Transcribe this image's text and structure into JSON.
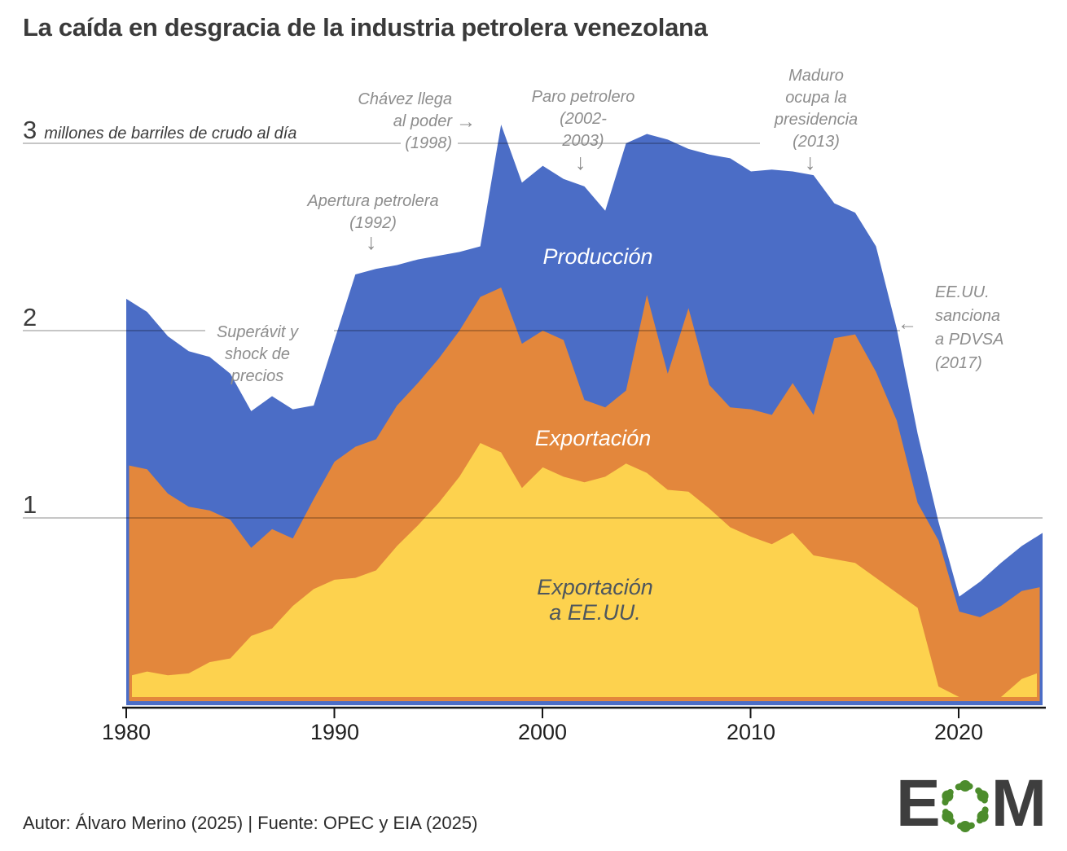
{
  "title": "La caída en desgracia de la industria petrolera venezolana",
  "footer": "Autor: Álvaro Merino (2025) | Fuente: OPEC y EIA (2025)",
  "y_axis": {
    "ticks": [
      "3",
      "2",
      "1"
    ],
    "unit": "millones de barriles de crudo al día"
  },
  "x_axis": {
    "ticks": [
      "1980",
      "1990",
      "2000",
      "2010",
      "2020"
    ]
  },
  "labels": {
    "produccion": "Producción",
    "exportacion": "Exportación",
    "eeuu_line1": "Exportación",
    "eeuu_line2": "a EE.UU."
  },
  "annotations": [
    {
      "id": "chavez",
      "lines": [
        "Chávez llega",
        "al poder",
        "(1998)"
      ],
      "arrow": "→"
    },
    {
      "id": "paro",
      "lines": [
        "Paro petrolero",
        "(2002-",
        "2003)"
      ],
      "arrow": "↓"
    },
    {
      "id": "maduro",
      "lines": [
        "Maduro",
        "ocupa la",
        "presidencia",
        "(2013)"
      ],
      "arrow": "↓"
    },
    {
      "id": "apertura",
      "lines": [
        "Apertura petrolera",
        "(1992)"
      ],
      "arrow": "↓"
    },
    {
      "id": "superavit",
      "lines": [
        "Superávit y",
        "shock de",
        "precios"
      ],
      "arrow": ""
    },
    {
      "id": "sanciones",
      "lines": [
        "EE.UU.",
        "sanciona",
        "a PDVSA",
        "(2017)"
      ],
      "arrow": "←"
    }
  ],
  "logo": {
    "left_letter": "E",
    "right_letter": "M",
    "ring_color": "#4c8c2c"
  },
  "chart_data": {
    "type": "area",
    "title": "La caída en desgracia de la industria petrolera venezolana",
    "ylabel": "millones de barriles de crudo al día",
    "xlabel": "",
    "ylim": [
      0,
      3.2
    ],
    "xlim": [
      1980,
      2024
    ],
    "grid": "horizontal",
    "legend_position": "labels-inside-areas",
    "colors": {
      "produccion": "#4b6dc6",
      "exportacion": "#e3873c",
      "exportacion_eeuu": "#fdd24e"
    },
    "years": [
      1980,
      1981,
      1982,
      1983,
      1984,
      1985,
      1986,
      1987,
      1988,
      1989,
      1990,
      1991,
      1992,
      1993,
      1994,
      1995,
      1996,
      1997,
      1998,
      1999,
      2000,
      2001,
      2002,
      2003,
      2004,
      2005,
      2006,
      2007,
      2008,
      2009,
      2010,
      2011,
      2012,
      2013,
      2014,
      2015,
      2016,
      2017,
      2018,
      2019,
      2020,
      2021,
      2022,
      2023,
      2024
    ],
    "series": [
      {
        "name": "Producción",
        "values": [
          2.17,
          2.1,
          1.97,
          1.89,
          1.86,
          1.77,
          1.57,
          1.65,
          1.58,
          1.6,
          1.95,
          2.3,
          2.33,
          2.35,
          2.38,
          2.4,
          2.42,
          2.45,
          3.1,
          2.79,
          2.88,
          2.81,
          2.77,
          2.64,
          3.0,
          3.05,
          3.02,
          2.97,
          2.94,
          2.92,
          2.85,
          2.86,
          2.85,
          2.83,
          2.68,
          2.63,
          2.45,
          2.01,
          1.45,
          0.98,
          0.58,
          0.66,
          0.76,
          0.85,
          0.92
        ]
      },
      {
        "name": "Exportación",
        "values": [
          1.28,
          1.26,
          1.13,
          1.06,
          1.04,
          0.99,
          0.84,
          0.94,
          0.89,
          1.1,
          1.3,
          1.38,
          1.42,
          1.6,
          1.72,
          1.85,
          2.0,
          2.18,
          2.23,
          1.93,
          2.0,
          1.95,
          1.63,
          1.59,
          1.68,
          2.19,
          1.77,
          2.12,
          1.71,
          1.59,
          1.58,
          1.55,
          1.72,
          1.55,
          1.96,
          1.98,
          1.78,
          1.52,
          1.08,
          0.88,
          0.5,
          0.47,
          0.53,
          0.61,
          0.63
        ]
      },
      {
        "name": "Exportación a EE.UU.",
        "values": [
          0.16,
          0.18,
          0.16,
          0.17,
          0.23,
          0.25,
          0.37,
          0.41,
          0.53,
          0.62,
          0.67,
          0.68,
          0.72,
          0.85,
          0.96,
          1.08,
          1.22,
          1.4,
          1.35,
          1.16,
          1.27,
          1.22,
          1.19,
          1.22,
          1.29,
          1.24,
          1.15,
          1.14,
          1.05,
          0.95,
          0.9,
          0.86,
          0.92,
          0.8,
          0.78,
          0.76,
          0.68,
          0.6,
          0.52,
          0.1,
          0.03,
          0.02,
          0.03,
          0.14,
          0.17
        ]
      }
    ],
    "annotations": [
      {
        "text": "Chávez llega al poder (1998)",
        "x": 1998,
        "y": 3.1
      },
      {
        "text": "Apertura petrolera (1992)",
        "x": 1992,
        "y": 2.33
      },
      {
        "text": "Paro petrolero (2002-2003)",
        "x": 2002,
        "y": 2.77
      },
      {
        "text": "Maduro ocupa la presidencia (2013)",
        "x": 2013,
        "y": 2.83
      },
      {
        "text": "Superávit y shock de precios",
        "x": 1986,
        "y": 2.0
      },
      {
        "text": "EE.UU. sanciona a PDVSA (2017)",
        "x": 2017,
        "y": 2.0
      }
    ]
  }
}
